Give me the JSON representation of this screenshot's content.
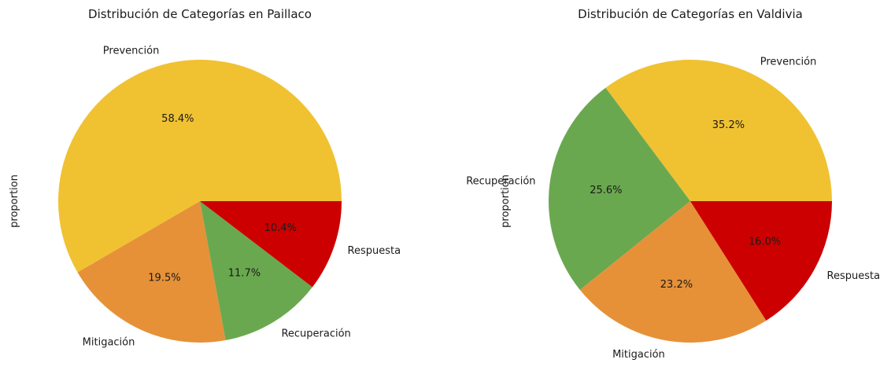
{
  "chart_data": [
    {
      "type": "pie",
      "title": "Distribución de Categorías en Paillaco",
      "ylabel": "proportion",
      "categories": [
        "Prevención",
        "Mitigación",
        "Recuperación",
        "Respuesta"
      ],
      "values": [
        58.4,
        19.5,
        11.7,
        10.4
      ],
      "labels_pct": [
        "58.4%",
        "19.5%",
        "11.7%",
        "10.4%"
      ],
      "colors": [
        "#F0C232",
        "#E69138",
        "#6AA84F",
        "#CC0000"
      ],
      "start_angle_deg": 0,
      "direction": "counterclockwise"
    },
    {
      "type": "pie",
      "title": "Distribución de Categorías en Valdivia",
      "ylabel": "proportion",
      "categories": [
        "Prevención",
        "Recuperación",
        "Mitigación",
        "Respuesta"
      ],
      "values": [
        35.2,
        25.6,
        23.2,
        16.0
      ],
      "labels_pct": [
        "35.2%",
        "25.6%",
        "23.2%",
        "16.0%"
      ],
      "colors": [
        "#F0C232",
        "#6AA84F",
        "#E69138",
        "#CC0000"
      ],
      "start_angle_deg": 0,
      "direction": "counterclockwise"
    }
  ]
}
